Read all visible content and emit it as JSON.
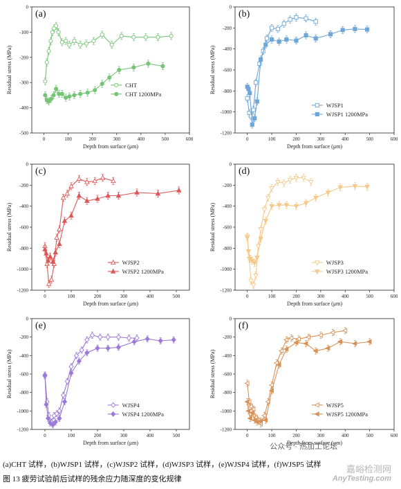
{
  "chart_data": [
    {
      "panel": "(a)",
      "type": "line",
      "xlabel": "Depth from surface (μm)",
      "ylabel": "Residual stress (MPa)",
      "xlim": [
        -50,
        600
      ],
      "ylim": [
        -500,
        0
      ],
      "xticks": [
        0,
        100,
        200,
        300,
        400,
        500,
        600
      ],
      "yticks": [
        0,
        -100,
        -200,
        -300,
        -400,
        -500
      ],
      "legend_position": "center-right",
      "color": "#76c476",
      "series": [
        {
          "name": "CHT",
          "marker": "circle",
          "error_bars": true,
          "x": [
            5,
            12,
            20,
            28,
            35,
            42,
            50,
            60,
            75,
            90,
            105,
            125,
            150,
            175,
            205,
            240,
            280,
            320,
            370,
            420,
            470,
            525
          ],
          "y": [
            -295,
            -220,
            -175,
            -135,
            -100,
            -85,
            -75,
            -100,
            -140,
            -135,
            -150,
            -135,
            -150,
            -145,
            -135,
            -110,
            -150,
            -115,
            -120,
            -120,
            -120,
            -115
          ]
        },
        {
          "name": "CHT 1200MPa",
          "marker": "circle",
          "error_bars": true,
          "x": [
            5,
            12,
            20,
            30,
            40,
            50,
            62,
            75,
            90,
            105,
            125,
            150,
            180,
            210,
            240,
            270,
            310,
            370,
            430,
            490
          ],
          "y": [
            -350,
            -370,
            -375,
            -365,
            -350,
            -325,
            -345,
            -345,
            -360,
            -355,
            -350,
            -345,
            -340,
            -330,
            -305,
            -280,
            -250,
            -240,
            -225,
            -235
          ]
        }
      ]
    },
    {
      "panel": "(b)",
      "type": "line",
      "xlabel": "Depth from surface (μm)",
      "ylabel": "Residual stress (MPa)",
      "xlim": [
        -50,
        600
      ],
      "ylim": [
        -1200,
        0
      ],
      "xticks": [
        0,
        100,
        200,
        300,
        400,
        500,
        600
      ],
      "yticks": [
        0,
        -200,
        -400,
        -600,
        -800,
        -1000,
        -1200
      ],
      "legend_position": "lower-right",
      "color": "#6ea6d8",
      "series": [
        {
          "name": "WJSP1",
          "marker": "square",
          "error_bars": true,
          "x": [
            0,
            8,
            15,
            25,
            35,
            50,
            65,
            80,
            100,
            125,
            150,
            175,
            200,
            240,
            280
          ],
          "y": [
            -870,
            -1010,
            -1040,
            -980,
            -720,
            -540,
            -420,
            -300,
            -200,
            -210,
            -160,
            -120,
            -100,
            -110,
            -140
          ]
        },
        {
          "name": "WJSP1 1200MPa",
          "marker": "square",
          "error_bars": true,
          "x": [
            0,
            5,
            10,
            20,
            30,
            40,
            55,
            75,
            100,
            130,
            160,
            200,
            240,
            280,
            340,
            390,
            440,
            490
          ],
          "y": [
            -760,
            -780,
            -820,
            -1120,
            -1060,
            -900,
            -500,
            -360,
            -310,
            -330,
            -310,
            -320,
            -270,
            -300,
            -260,
            -220,
            -210,
            -215
          ]
        }
      ]
    },
    {
      "panel": "(c)",
      "type": "line",
      "xlabel": "Depth from surface (μm)",
      "ylabel": "Residual stress (MPa)",
      "xlim": [
        -50,
        550
      ],
      "ylim": [
        -1200,
        0
      ],
      "xticks": [
        0,
        100,
        200,
        300,
        400,
        500
      ],
      "yticks": [
        0,
        -200,
        -400,
        -600,
        -800,
        -1000,
        -1200
      ],
      "legend_position": "lower-right",
      "color": "#dc5858",
      "series": [
        {
          "name": "WJSP2",
          "marker": "triangle-up",
          "error_bars": true,
          "x": [
            0,
            8,
            15,
            25,
            35,
            45,
            55,
            70,
            85,
            100,
            130,
            160,
            190,
            220,
            260
          ],
          "y": [
            -780,
            -950,
            -1140,
            -1100,
            -950,
            -700,
            -620,
            -320,
            -280,
            -210,
            -140,
            -170,
            -160,
            -130,
            -160
          ]
        },
        {
          "name": "WJSP2 1200MPa",
          "marker": "triangle-up",
          "error_bars": true,
          "x": [
            0,
            5,
            12,
            20,
            30,
            40,
            55,
            75,
            100,
            130,
            160,
            200,
            240,
            280,
            350,
            430,
            510
          ],
          "y": [
            -810,
            -850,
            -920,
            -880,
            -930,
            -840,
            -760,
            -540,
            -490,
            -300,
            -350,
            -330,
            -300,
            -300,
            -270,
            -280,
            -250
          ]
        }
      ]
    },
    {
      "panel": "(d)",
      "type": "line",
      "xlabel": "Depth from surface (μm)",
      "ylabel": "Residual stress (MPa)",
      "xlim": [
        -50,
        600
      ],
      "ylim": [
        -1200,
        0
      ],
      "xticks": [
        0,
        100,
        200,
        300,
        400,
        500,
        600
      ],
      "yticks": [
        0,
        -200,
        -400,
        -600,
        -800,
        -1000,
        -1200
      ],
      "legend_position": "lower-right",
      "color": "#f4c98a",
      "series": [
        {
          "name": "WJSP3",
          "marker": "triangle-down",
          "error_bars": true,
          "x": [
            0,
            8,
            15,
            25,
            35,
            45,
            55,
            70,
            85,
            100,
            125,
            150,
            175,
            200,
            230,
            260
          ],
          "y": [
            -690,
            -900,
            -1110,
            -1150,
            -1060,
            -780,
            -620,
            -430,
            -320,
            -230,
            -170,
            -180,
            -150,
            -130,
            -130,
            -170
          ]
        },
        {
          "name": "WJSP3 1200MPa",
          "marker": "triangle-down",
          "error_bars": true,
          "x": [
            0,
            5,
            12,
            20,
            30,
            40,
            55,
            75,
            100,
            130,
            160,
            200,
            240,
            280,
            330,
            380,
            440,
            490
          ],
          "y": [
            -700,
            -830,
            -900,
            -920,
            -940,
            -890,
            -710,
            -540,
            -400,
            -390,
            -390,
            -400,
            -370,
            -320,
            -270,
            -220,
            -210,
            -215
          ]
        }
      ]
    },
    {
      "panel": "(e)",
      "type": "line",
      "xlabel": "Depth from surface (μm)",
      "ylabel": "Residual stress (MPa)",
      "xlim": [
        -50,
        550
      ],
      "ylim": [
        -1200,
        0
      ],
      "xticks": [
        0,
        100,
        200,
        300,
        400,
        500
      ],
      "yticks": [
        0,
        -200,
        -400,
        -600,
        -800,
        -1000,
        -1200
      ],
      "legend_position": "lower-right",
      "color": "#9c7ad8",
      "series": [
        {
          "name": "WJSP4",
          "marker": "diamond",
          "error_bars": true,
          "x": [
            0,
            8,
            15,
            25,
            35,
            45,
            55,
            70,
            85,
            100,
            120,
            140,
            160,
            180,
            210,
            240,
            280,
            320,
            350
          ],
          "y": [
            -610,
            -900,
            -1050,
            -1120,
            -1050,
            -1030,
            -1000,
            -830,
            -680,
            -520,
            -400,
            -340,
            -230,
            -180,
            -200,
            -200,
            -200,
            -210,
            -210
          ]
        },
        {
          "name": "WJSP4 1200MPa",
          "marker": "diamond",
          "error_bars": true,
          "x": [
            0,
            5,
            12,
            20,
            30,
            40,
            55,
            75,
            100,
            130,
            160,
            200,
            240,
            280,
            340,
            390,
            440,
            490
          ],
          "y": [
            -620,
            -930,
            -1080,
            -1130,
            -1150,
            -1120,
            -1080,
            -900,
            -590,
            -460,
            -370,
            -320,
            -320,
            -310,
            -250,
            -220,
            -240,
            -230
          ]
        }
      ]
    },
    {
      "panel": "(f)",
      "type": "line",
      "xlabel": "Depth from surface (μm)",
      "ylabel": "Residual stress (MPa)",
      "xlim": [
        -50,
        600
      ],
      "ylim": [
        -1200,
        0
      ],
      "xticks": [
        0,
        100,
        200,
        300,
        400,
        500,
        600
      ],
      "yticks": [
        0,
        -200,
        -400,
        -600,
        -800,
        -1000,
        -1200
      ],
      "legend_position": "lower-right",
      "color": "#d6925a",
      "series": [
        {
          "name": "WJSP5",
          "marker": "triangle-left",
          "error_bars": true,
          "x": [
            0,
            8,
            15,
            25,
            35,
            45,
            55,
            70,
            85,
            100,
            120,
            140,
            160,
            180,
            210,
            250,
            300,
            350,
            400
          ],
          "y": [
            -700,
            -900,
            -950,
            -980,
            -1070,
            -1100,
            -1140,
            -1050,
            -900,
            -720,
            -480,
            -350,
            -230,
            -210,
            -220,
            -200,
            -180,
            -150,
            -130
          ]
        },
        {
          "name": "WJSP5 1200MPa",
          "marker": "triangle-left",
          "error_bars": true,
          "x": [
            0,
            5,
            12,
            20,
            30,
            40,
            55,
            75,
            100,
            130,
            160,
            200,
            240,
            280,
            330,
            380,
            440,
            500
          ],
          "y": [
            -900,
            -1000,
            -1080,
            -1020,
            -1100,
            -1120,
            -1110,
            -1100,
            -780,
            -500,
            -330,
            -260,
            -270,
            -350,
            -320,
            -250,
            -270,
            -250
          ]
        }
      ]
    }
  ],
  "caption": {
    "line1": "(a)CHT 试样，(b)WJSP1 试样，(c)WJSP2 试样，(d)WJSP3 试样，(e)WJSP4 试样，(f)WJSP5 试样",
    "line2": "图 13  疲劳试验前后试样的残余应力随深度的变化规律"
  },
  "watermarks": {
    "wechat": "公众号 · 热加工论坛",
    "site_cn": "嘉峪检测网",
    "site_en": "AnyTesting.com"
  }
}
